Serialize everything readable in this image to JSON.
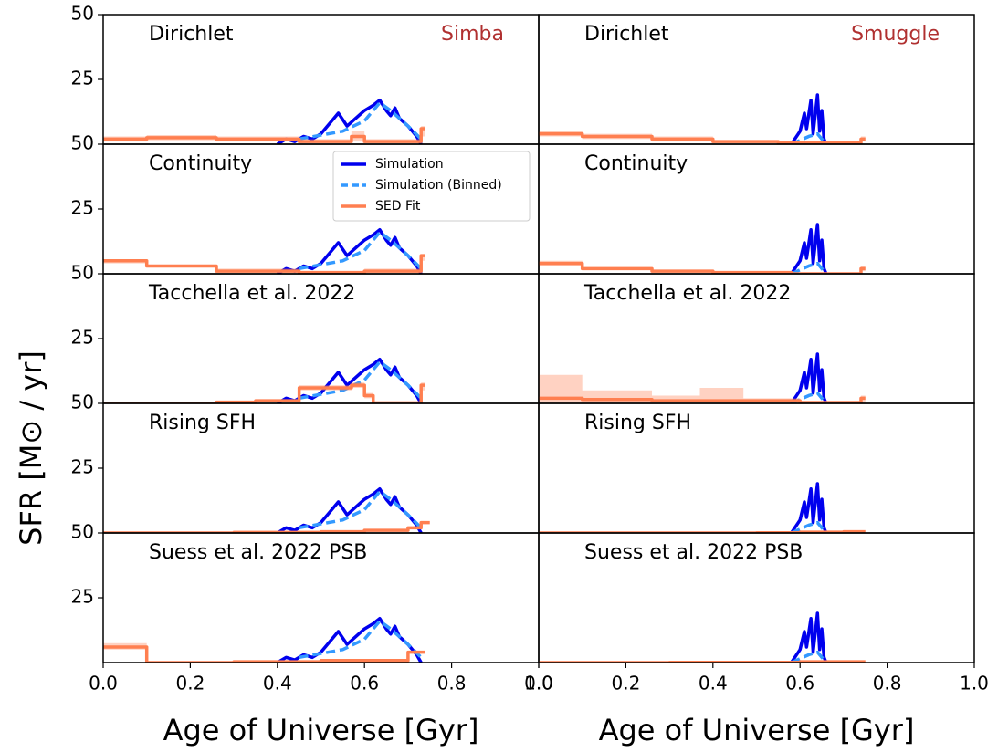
{
  "chart_data": [
    {
      "type": "line",
      "title": "Dirichlet",
      "annotation": "Simba",
      "annotation_color": "#b03030",
      "xlim": [
        0,
        1
      ],
      "ylim": [
        0,
        50
      ],
      "yticks": [
        25,
        50
      ],
      "series": [
        {
          "color": "#0000ee",
          "style": "solid",
          "x": [
            0.4,
            0.42,
            0.44,
            0.46,
            0.48,
            0.5,
            0.52,
            0.54,
            0.56,
            0.58,
            0.6,
            0.62,
            0.635,
            0.65,
            0.66,
            0.67,
            0.68,
            0.7,
            0.72,
            0.73
          ],
          "values": [
            0,
            2,
            1,
            3,
            2,
            4,
            8,
            12,
            7,
            10,
            13,
            15,
            17,
            13,
            11,
            14,
            10,
            7,
            3,
            0
          ]
        },
        {
          "color": "#3399ff",
          "style": "dashed",
          "x": [
            0.45,
            0.55,
            0.6,
            0.635,
            0.66,
            0.7,
            0.73
          ],
          "values": [
            2,
            5,
            9,
            16,
            13,
            7,
            2
          ]
        },
        {
          "color": "#ff7f50",
          "style": "steps",
          "x": [
            0,
            0.1,
            0.26,
            0.45,
            0.57,
            0.6,
            0.73,
            0.74
          ],
          "values": [
            2,
            2.5,
            2,
            1,
            3,
            1,
            6,
            6
          ],
          "values_lower": [
            1,
            1.5,
            1,
            0.5,
            1,
            0.5,
            3,
            3
          ],
          "values_upper": [
            3,
            3.5,
            3,
            2,
            5,
            2,
            7,
            7
          ]
        }
      ]
    },
    {
      "type": "line",
      "title": "Dirichlet",
      "annotation": "Smuggle",
      "annotation_color": "#b03030",
      "xlim": [
        0,
        1
      ],
      "ylim": [
        0,
        50
      ],
      "series": [
        {
          "color": "#0000ee",
          "style": "solid",
          "x": [
            0.58,
            0.6,
            0.61,
            0.615,
            0.625,
            0.63,
            0.64,
            0.645,
            0.65,
            0.655,
            0.66
          ],
          "values": [
            0,
            5,
            12,
            6,
            17,
            4,
            19,
            5,
            13,
            2,
            0
          ]
        },
        {
          "color": "#3399ff",
          "style": "dashed",
          "x": [
            0.58,
            0.62,
            0.64,
            0.66
          ],
          "values": [
            0,
            3,
            4,
            0
          ]
        },
        {
          "color": "#ff7f50",
          "style": "steps",
          "x": [
            0,
            0.1,
            0.26,
            0.4,
            0.55,
            0.74,
            0.75
          ],
          "values": [
            4,
            3,
            2,
            1,
            0.5,
            2,
            2
          ],
          "values_lower": [
            3,
            2,
            1,
            0.5,
            0,
            1,
            1
          ],
          "values_upper": [
            5,
            4,
            3,
            1.5,
            1,
            3,
            3
          ]
        }
      ]
    },
    {
      "type": "line",
      "title": "Continuity",
      "xlim": [
        0,
        1
      ],
      "ylim": [
        0,
        50
      ],
      "yticks": [
        25,
        50
      ],
      "legend": "upper right",
      "series": [
        {
          "name": "Simulation",
          "color": "#0000ee",
          "style": "solid",
          "x": [
            0.4,
            0.42,
            0.44,
            0.46,
            0.48,
            0.5,
            0.52,
            0.54,
            0.56,
            0.58,
            0.6,
            0.62,
            0.635,
            0.65,
            0.66,
            0.67,
            0.68,
            0.7,
            0.72,
            0.73
          ],
          "values": [
            0,
            2,
            1,
            3,
            2,
            4,
            8,
            12,
            7,
            10,
            13,
            15,
            17,
            13,
            11,
            14,
            10,
            7,
            3,
            0
          ]
        },
        {
          "name": "Simulation (Binned)",
          "color": "#3399ff",
          "style": "dashed",
          "x": [
            0.45,
            0.55,
            0.6,
            0.635,
            0.66,
            0.7,
            0.73
          ],
          "values": [
            2,
            5,
            9,
            16,
            13,
            7,
            2
          ]
        },
        {
          "name": "SED Fit",
          "color": "#ff7f50",
          "style": "steps",
          "x": [
            0,
            0.1,
            0.26,
            0.45,
            0.6,
            0.73,
            0.74
          ],
          "values": [
            5,
            3,
            1,
            0.5,
            1,
            7,
            7
          ],
          "values_lower": [
            4,
            2.5,
            0.5,
            0,
            0.5,
            5,
            5
          ],
          "values_upper": [
            5.5,
            3.5,
            2,
            1,
            2,
            7.5,
            7.5
          ]
        }
      ]
    },
    {
      "type": "line",
      "title": "Continuity",
      "xlim": [
        0,
        1
      ],
      "ylim": [
        0,
        50
      ],
      "series": [
        {
          "color": "#0000ee",
          "style": "solid",
          "x": [
            0.58,
            0.6,
            0.61,
            0.615,
            0.625,
            0.63,
            0.64,
            0.645,
            0.65,
            0.655,
            0.66
          ],
          "values": [
            0,
            5,
            12,
            6,
            17,
            4,
            19,
            5,
            13,
            2,
            0
          ]
        },
        {
          "color": "#3399ff",
          "style": "dashed",
          "x": [
            0.58,
            0.62,
            0.64,
            0.66
          ],
          "values": [
            0,
            3,
            4,
            0
          ]
        },
        {
          "color": "#ff7f50",
          "style": "steps",
          "x": [
            0,
            0.1,
            0.26,
            0.4,
            0.58,
            0.74,
            0.75
          ],
          "values": [
            4,
            2,
            1,
            0.5,
            0,
            2,
            2
          ],
          "values_lower": [
            3,
            1.5,
            0.5,
            0,
            0,
            1,
            1
          ],
          "values_upper": [
            5,
            2.5,
            1.5,
            1,
            0.5,
            3,
            3
          ]
        }
      ]
    },
    {
      "type": "line",
      "title": "Tacchella et al. 2022",
      "xlim": [
        0,
        1
      ],
      "ylim": [
        0,
        50
      ],
      "yticks": [
        25,
        50
      ],
      "series": [
        {
          "color": "#0000ee",
          "style": "solid",
          "x": [
            0.4,
            0.42,
            0.44,
            0.46,
            0.48,
            0.5,
            0.52,
            0.54,
            0.56,
            0.58,
            0.6,
            0.62,
            0.635,
            0.65,
            0.66,
            0.67,
            0.68,
            0.7,
            0.72,
            0.73
          ],
          "values": [
            0,
            2,
            1,
            3,
            2,
            4,
            8,
            12,
            7,
            10,
            13,
            15,
            17,
            13,
            11,
            14,
            10,
            7,
            3,
            0
          ]
        },
        {
          "color": "#3399ff",
          "style": "dashed",
          "x": [
            0.45,
            0.55,
            0.6,
            0.635,
            0.66,
            0.7,
            0.73
          ],
          "values": [
            2,
            5,
            9,
            16,
            13,
            7,
            2
          ]
        },
        {
          "color": "#ff7f50",
          "style": "steps",
          "x": [
            0,
            0.26,
            0.35,
            0.45,
            0.57,
            0.6,
            0.62,
            0.73,
            0.74
          ],
          "values": [
            0,
            0.5,
            1,
            6,
            7,
            3,
            0,
            7,
            7
          ],
          "values_lower": [
            0,
            0,
            0.5,
            5,
            6,
            2,
            0,
            5,
            5
          ],
          "values_upper": [
            0.5,
            1,
            1.5,
            7,
            8,
            4,
            1,
            8,
            8
          ]
        }
      ]
    },
    {
      "type": "line",
      "title": "Tacchella et al. 2022",
      "xlim": [
        0,
        1
      ],
      "ylim": [
        0,
        50
      ],
      "series": [
        {
          "color": "#0000ee",
          "style": "solid",
          "x": [
            0.58,
            0.6,
            0.61,
            0.615,
            0.625,
            0.63,
            0.64,
            0.645,
            0.65,
            0.655,
            0.66
          ],
          "values": [
            0,
            5,
            12,
            6,
            17,
            4,
            19,
            5,
            13,
            2,
            0
          ]
        },
        {
          "color": "#3399ff",
          "style": "dashed",
          "x": [
            0.58,
            0.62,
            0.64,
            0.66
          ],
          "values": [
            0,
            3,
            4,
            0
          ]
        },
        {
          "color": "#ff7f50",
          "style": "steps",
          "x": [
            0,
            0.1,
            0.26,
            0.37,
            0.47,
            0.6,
            0.74,
            0.75
          ],
          "values": [
            2,
            1.5,
            1,
            1,
            1,
            0.3,
            2,
            2
          ],
          "values_lower": [
            0,
            0,
            0,
            0,
            0,
            0,
            0,
            0
          ],
          "values_upper": [
            11,
            5,
            3,
            6,
            2,
            1,
            3,
            3
          ]
        }
      ]
    },
    {
      "type": "line",
      "title": "Rising SFH",
      "xlim": [
        0,
        1
      ],
      "ylim": [
        0,
        50
      ],
      "yticks": [
        25,
        50
      ],
      "series": [
        {
          "color": "#0000ee",
          "style": "solid",
          "x": [
            0.4,
            0.42,
            0.44,
            0.46,
            0.48,
            0.5,
            0.52,
            0.54,
            0.56,
            0.58,
            0.6,
            0.62,
            0.635,
            0.65,
            0.66,
            0.67,
            0.68,
            0.7,
            0.72,
            0.73
          ],
          "values": [
            0,
            2,
            1,
            3,
            2,
            4,
            8,
            12,
            7,
            10,
            13,
            15,
            17,
            13,
            11,
            14,
            10,
            7,
            3,
            0
          ]
        },
        {
          "color": "#3399ff",
          "style": "dashed",
          "x": [
            0.45,
            0.55,
            0.6,
            0.635,
            0.66,
            0.7,
            0.73
          ],
          "values": [
            2,
            5,
            9,
            16,
            13,
            7,
            2
          ]
        },
        {
          "color": "#ff7f50",
          "style": "steps",
          "x": [
            0,
            0.3,
            0.5,
            0.6,
            0.7,
            0.73,
            0.75
          ],
          "values": [
            0,
            0.2,
            0.5,
            1,
            2,
            4,
            4
          ]
        }
      ]
    },
    {
      "type": "line",
      "title": "Rising SFH",
      "xlim": [
        0,
        1
      ],
      "ylim": [
        0,
        50
      ],
      "series": [
        {
          "color": "#0000ee",
          "style": "solid",
          "x": [
            0.58,
            0.6,
            0.61,
            0.615,
            0.625,
            0.63,
            0.64,
            0.645,
            0.65,
            0.655,
            0.66
          ],
          "values": [
            0,
            5,
            12,
            6,
            17,
            4,
            19,
            5,
            13,
            2,
            0
          ]
        },
        {
          "color": "#3399ff",
          "style": "dashed",
          "x": [
            0.58,
            0.62,
            0.64,
            0.66
          ],
          "values": [
            0,
            3,
            4,
            0
          ]
        },
        {
          "color": "#ff7f50",
          "style": "steps",
          "x": [
            0,
            0.5,
            0.6,
            0.7,
            0.75
          ],
          "values": [
            0,
            0.1,
            0.3,
            0.5,
            0.5
          ]
        }
      ]
    },
    {
      "type": "line",
      "title": "Suess et al. 2022 PSB",
      "xlim": [
        0,
        1
      ],
      "ylim": [
        0,
        50
      ],
      "yticks": [
        25,
        50
      ],
      "xticks": [
        {
          "value": 0,
          "label": "0.0"
        },
        0.2,
        0.4,
        0.6,
        0.8,
        {
          "value": 1,
          "label": "1.0"
        }
      ],
      "xlabel": "Age of Universe [Gyr]",
      "ylabel": "SFR [M⊙ / yr]",
      "series": [
        {
          "color": "#0000ee",
          "style": "solid",
          "x": [
            0.4,
            0.42,
            0.44,
            0.46,
            0.48,
            0.5,
            0.52,
            0.54,
            0.56,
            0.58,
            0.6,
            0.62,
            0.635,
            0.65,
            0.66,
            0.67,
            0.68,
            0.7,
            0.72,
            0.73
          ],
          "values": [
            0,
            2,
            1,
            3,
            2,
            4,
            8,
            12,
            7,
            10,
            13,
            15,
            17,
            13,
            11,
            14,
            10,
            7,
            3,
            0
          ]
        },
        {
          "color": "#3399ff",
          "style": "dashed",
          "x": [
            0.45,
            0.55,
            0.6,
            0.635,
            0.66,
            0.7,
            0.73
          ],
          "values": [
            2,
            5,
            9,
            16,
            13,
            7,
            2
          ]
        },
        {
          "color": "#ff7f50",
          "style": "steps",
          "x": [
            0,
            0.1,
            0.3,
            0.5,
            0.7,
            0.74
          ],
          "values": [
            6,
            0,
            0.3,
            0.8,
            4,
            4
          ],
          "values_lower": [
            5,
            0,
            0,
            0.5,
            3.5,
            3.5
          ],
          "values_upper": [
            7.5,
            0.5,
            0.5,
            1,
            4.5,
            4.5
          ]
        }
      ]
    },
    {
      "type": "line",
      "title": "Suess et al. 2022 PSB",
      "xlim": [
        0,
        1
      ],
      "ylim": [
        0,
        50
      ],
      "xticks": [
        {
          "value": 0,
          "label": "0.0"
        },
        0.2,
        0.4,
        0.6,
        0.8,
        {
          "value": 1,
          "label": "1.0"
        }
      ],
      "xlabel": "Age of Universe [Gyr]",
      "series": [
        {
          "color": "#0000ee",
          "style": "solid",
          "x": [
            0.58,
            0.6,
            0.61,
            0.615,
            0.625,
            0.63,
            0.64,
            0.645,
            0.65,
            0.655,
            0.66
          ],
          "values": [
            0,
            5,
            12,
            6,
            17,
            4,
            19,
            5,
            13,
            2,
            0
          ]
        },
        {
          "color": "#3399ff",
          "style": "dashed",
          "x": [
            0.58,
            0.62,
            0.64,
            0.66
          ],
          "values": [
            0,
            3,
            4,
            0
          ]
        },
        {
          "color": "#ff7f50",
          "style": "steps",
          "x": [
            0,
            0.3,
            0.6,
            0.75
          ],
          "values": [
            0,
            0.1,
            0.3,
            0.3
          ]
        }
      ]
    }
  ]
}
